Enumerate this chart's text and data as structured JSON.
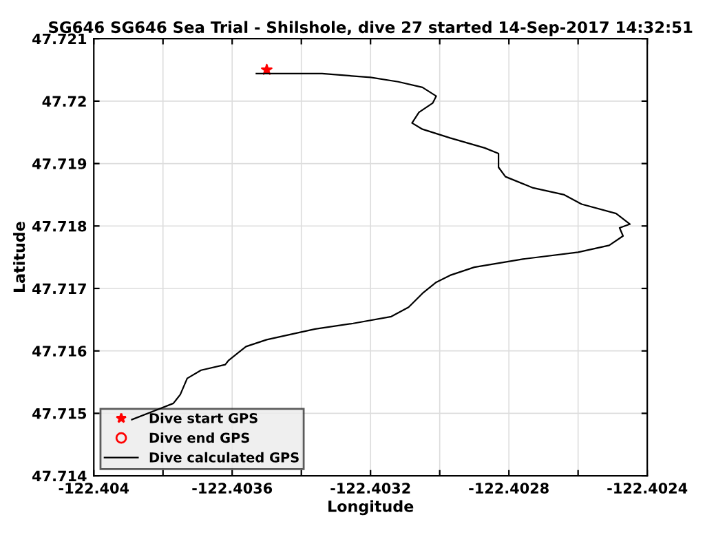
{
  "chart_data": {
    "type": "line",
    "title": "SG646 SG646 Sea Trial - Shilshole, dive 27 started 14-Sep-2017 14:32:51",
    "xlabel": "Longitude",
    "ylabel": "Latitude",
    "xlim": [
      -122.404,
      -122.4024
    ],
    "ylim": [
      47.714,
      47.721
    ],
    "xticks": [
      -122.404,
      {
        "value": -122.4038,
        "label": null
      },
      -122.4036,
      {
        "value": -122.4034,
        "label": null
      },
      -122.4032,
      {
        "value": -122.403,
        "label": null
      },
      -122.4028,
      {
        "value": -122.4026,
        "label": null
      },
      -122.4024
    ],
    "yticks": [
      47.714,
      47.715,
      47.716,
      47.717,
      47.718,
      47.719,
      47.72,
      47.721
    ],
    "grid": true,
    "legend": "bottom left",
    "series": [
      {
        "name": "Dive start GPS",
        "type": "scatter",
        "color": "#ff0000",
        "marker": "star",
        "x": [
          -122.4035
        ],
        "values": [
          47.7205
        ]
      },
      {
        "name": "Dive end GPS",
        "type": "scatter",
        "color": "#ff0000",
        "marker": "circle",
        "x": [
          null
        ],
        "values": [
          null
        ]
      },
      {
        "name": "Dive calculated GPS",
        "color": "#000000",
        "marker": "none",
        "line_style": "solid",
        "x": [
          -122.40353,
          -122.40346,
          -122.40334,
          -122.4032,
          -122.40312,
          -122.40305,
          -122.40301,
          -122.40302,
          -122.40306,
          -122.40308,
          -122.40305,
          -122.40297,
          -122.40287,
          -122.40283,
          -122.40283,
          -122.40281,
          -122.40273,
          -122.40264,
          -122.40259,
          -122.40249,
          -122.40245,
          -122.40248,
          -122.40247,
          -122.40251,
          -122.4026,
          -122.40276,
          -122.4029,
          -122.40297,
          -122.40301,
          -122.40305,
          -122.40309,
          -122.40314,
          -122.40325,
          -122.40336,
          -122.40341,
          -122.4035,
          -122.40356,
          -122.40361,
          -122.40362,
          -122.40369,
          -122.40373,
          -122.40375,
          -122.40377,
          -122.40382,
          -122.40389
        ],
        "values": [
          47.72044,
          47.72044,
          47.72044,
          47.72038,
          47.72031,
          47.72022,
          47.72008,
          47.71997,
          47.71982,
          47.71965,
          47.71955,
          47.71941,
          47.71925,
          47.71916,
          47.71894,
          47.71879,
          47.71861,
          47.7185,
          47.71835,
          47.7182,
          47.71803,
          47.71797,
          47.71784,
          47.71769,
          47.71758,
          47.71747,
          47.71734,
          47.71721,
          47.7171,
          47.71692,
          47.7167,
          47.71655,
          47.71644,
          47.71635,
          47.71629,
          47.71618,
          47.71607,
          47.71585,
          47.71578,
          47.71569,
          47.71556,
          47.7153,
          47.71516,
          47.71505,
          47.7149
        ]
      }
    ]
  }
}
